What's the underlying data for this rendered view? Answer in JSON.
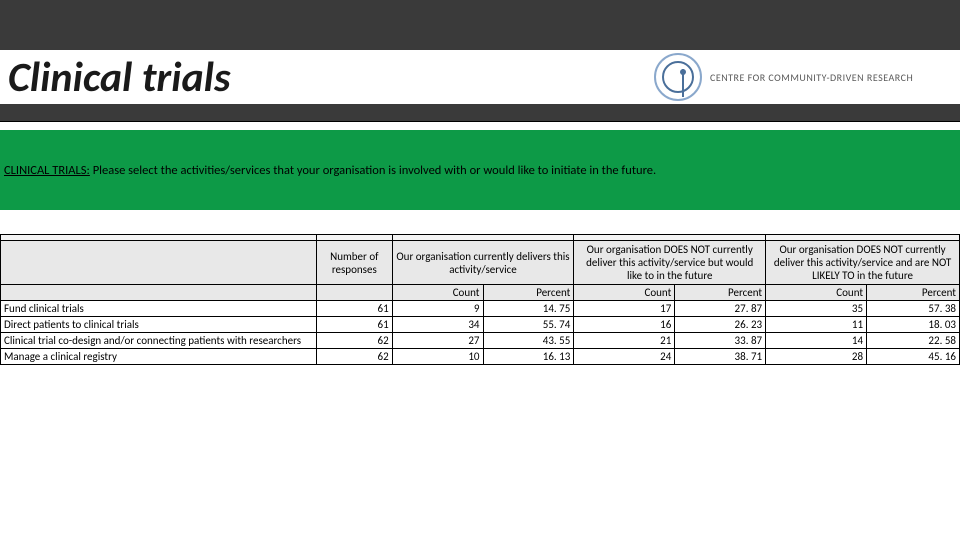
{
  "title": "Clinical trials",
  "logo_text": "CENTRE FOR COMMUNITY-DRIVEN RESEARCH",
  "banner": {
    "lead": "CLINICAL TRIALS:",
    "rest": " Please select the activities/services that your organisation is involved with or would like to initiate in the future."
  },
  "headers": {
    "responses": "Number of responses",
    "group1": "Our organisation currently delivers this activity/service",
    "group2": "Our organisation DOES NOT currently deliver this activity/service but would like to in the future",
    "group3": "Our organisation DOES NOT currently deliver this activity/service and are NOT LIKELY TO in the future",
    "count": "Count",
    "percent": "Percent"
  },
  "rows": [
    {
      "label": "Fund clinical trials",
      "n": "61",
      "c1": "9",
      "p1": "14. 75",
      "c2": "17",
      "p2": "27. 87",
      "c3": "35",
      "p3": "57. 38"
    },
    {
      "label": "Direct patients to clinical trials",
      "n": "61",
      "c1": "34",
      "p1": "55. 74",
      "c2": "16",
      "p2": "26. 23",
      "c3": "11",
      "p3": "18. 03"
    },
    {
      "label": "Clinical trial co-design and/or connecting patients with researchers",
      "n": "62",
      "c1": "27",
      "p1": "43. 55",
      "c2": "21",
      "p2": "33. 87",
      "c3": "14",
      "p3": "22. 58"
    },
    {
      "label": "Manage a clinical registry",
      "n": "62",
      "c1": "10",
      "p1": "16. 13",
      "c2": "24",
      "p2": "38. 71",
      "c3": "28",
      "p3": "45. 16"
    }
  ]
}
